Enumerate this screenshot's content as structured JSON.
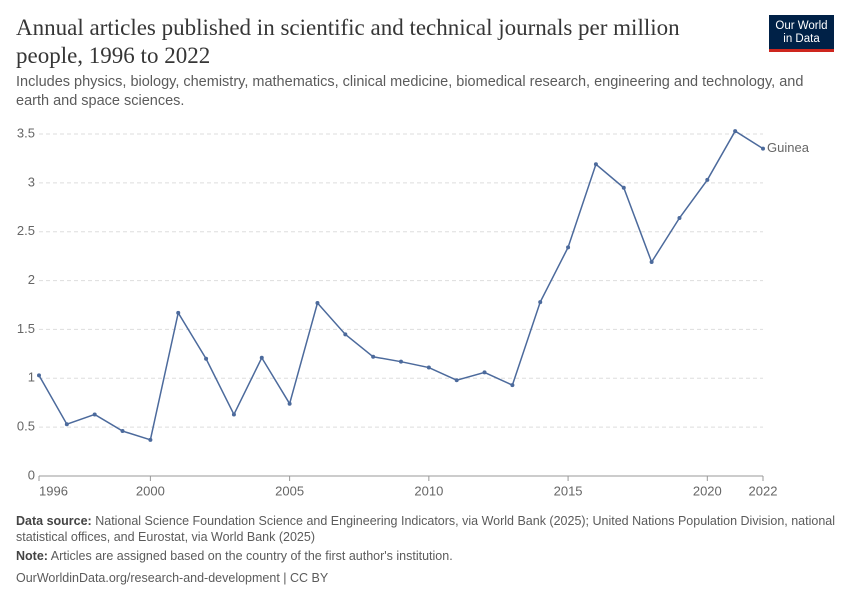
{
  "chart_data": {
    "type": "line",
    "title": "Annual articles published in scientific and technical journals per million people, 1996 to 2022",
    "subtitle": "Includes physics, biology, chemistry, mathematics, clinical medicine, biomedical research, engineering and technology, and earth and space sciences.",
    "x": [
      1996,
      1997,
      1998,
      1999,
      2000,
      2001,
      2002,
      2003,
      2004,
      2005,
      2006,
      2007,
      2008,
      2009,
      2010,
      2011,
      2012,
      2013,
      2014,
      2015,
      2016,
      2017,
      2018,
      2019,
      2020,
      2021,
      2022
    ],
    "series": [
      {
        "name": "Guinea",
        "color": "#4c6a9c",
        "values": [
          1.03,
          0.53,
          0.63,
          0.46,
          0.37,
          1.67,
          1.2,
          0.63,
          1.21,
          0.74,
          1.77,
          1.45,
          1.22,
          1.17,
          1.11,
          0.98,
          1.06,
          0.93,
          1.78,
          2.34,
          3.19,
          2.95,
          2.19,
          2.64,
          3.03,
          3.53,
          3.35
        ]
      }
    ],
    "xlim": [
      1996,
      2022
    ],
    "ylim": [
      0,
      3.5
    ],
    "xticks": [
      1996,
      2000,
      2005,
      2010,
      2015,
      2020,
      2022
    ],
    "yticks": [
      0,
      0.5,
      1,
      1.5,
      2,
      2.5,
      3,
      3.5
    ],
    "grid": true
  },
  "footer": {
    "source_label": "Data source:",
    "source": "National Science Foundation Science and Engineering Indicators, via World Bank (2025); United Nations Population Division, national statistical offices, and Eurostat, via World Bank (2025)",
    "note_label": "Note:",
    "note": "Articles are assigned based on the country of the first author's institution.",
    "url": "OurWorldinData.org/research-and-development | CC BY"
  },
  "logo": {
    "line1": "Our World",
    "line2": "in Data"
  }
}
